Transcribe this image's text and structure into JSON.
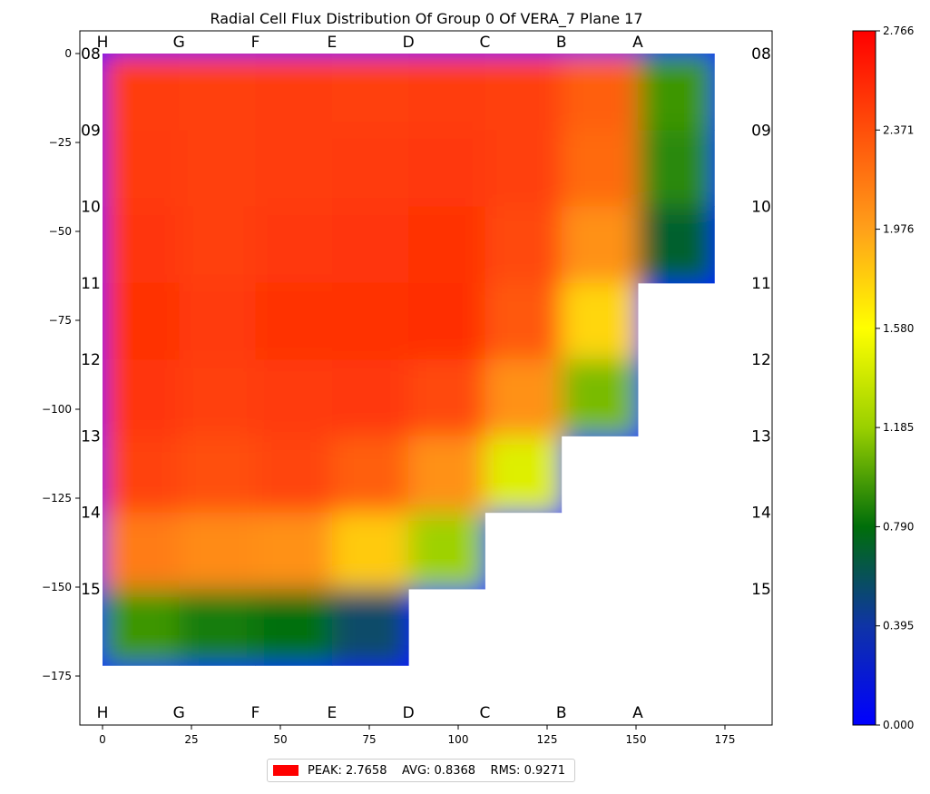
{
  "chart_data": {
    "type": "heatmap",
    "title": "Radial Cell Flux Distribution Of Group 0 Of VERA_7 Plane 17",
    "xlabel": "",
    "ylabel": "",
    "xlim": [
      -5,
      189
    ],
    "ylim": [
      -189,
      7
    ],
    "xticks": [
      0,
      25,
      50,
      75,
      100,
      125,
      150,
      175
    ],
    "yticks": [
      0,
      -25,
      -50,
      -75,
      -100,
      -125,
      -150,
      -175
    ],
    "column_labels": [
      "H",
      "G",
      "F",
      "E",
      "D",
      "C",
      "B",
      "A"
    ],
    "row_labels": [
      "08",
      "09",
      "10",
      "11",
      "12",
      "13",
      "14",
      "15"
    ],
    "assembly_pitch": 21.5,
    "assembly_flux": [
      [
        2.46,
        2.44,
        2.46,
        2.45,
        2.46,
        2.45,
        2.3,
        0.95
      ],
      [
        2.47,
        2.44,
        2.46,
        2.47,
        2.48,
        2.44,
        2.24,
        0.9
      ],
      [
        2.5,
        2.45,
        2.48,
        2.5,
        2.51,
        2.4,
        2.05,
        0.7
      ],
      [
        2.51,
        2.47,
        2.52,
        2.52,
        2.53,
        2.32,
        1.75,
        null
      ],
      [
        2.5,
        2.44,
        2.47,
        2.48,
        2.4,
        2.05,
        1.1,
        null
      ],
      [
        2.43,
        2.37,
        2.42,
        2.3,
        2.05,
        1.45,
        null,
        null
      ],
      [
        2.15,
        2.08,
        2.05,
        1.8,
        1.2,
        null,
        null,
        null
      ],
      [
        0.95,
        0.85,
        0.8,
        0.55,
        null,
        null,
        null,
        null
      ]
    ],
    "colorbar": {
      "ticks": [
        "0.000",
        "0.395",
        "0.790",
        "1.185",
        "1.580",
        "1.976",
        "2.371",
        "2.766"
      ],
      "min": 0,
      "max": 2.766,
      "colors": [
        "#0000ff",
        "#0f34a6",
        "#006e0a",
        "#9ad000",
        "#ffff00",
        "#ffa01a",
        "#ff4f0a",
        "#ff0000"
      ]
    },
    "legend": {
      "text": "PEAK: 2.7658    AVG: 0.8368    RMS: 0.9271",
      "color": "#ff0000",
      "placement": "bottom"
    }
  }
}
